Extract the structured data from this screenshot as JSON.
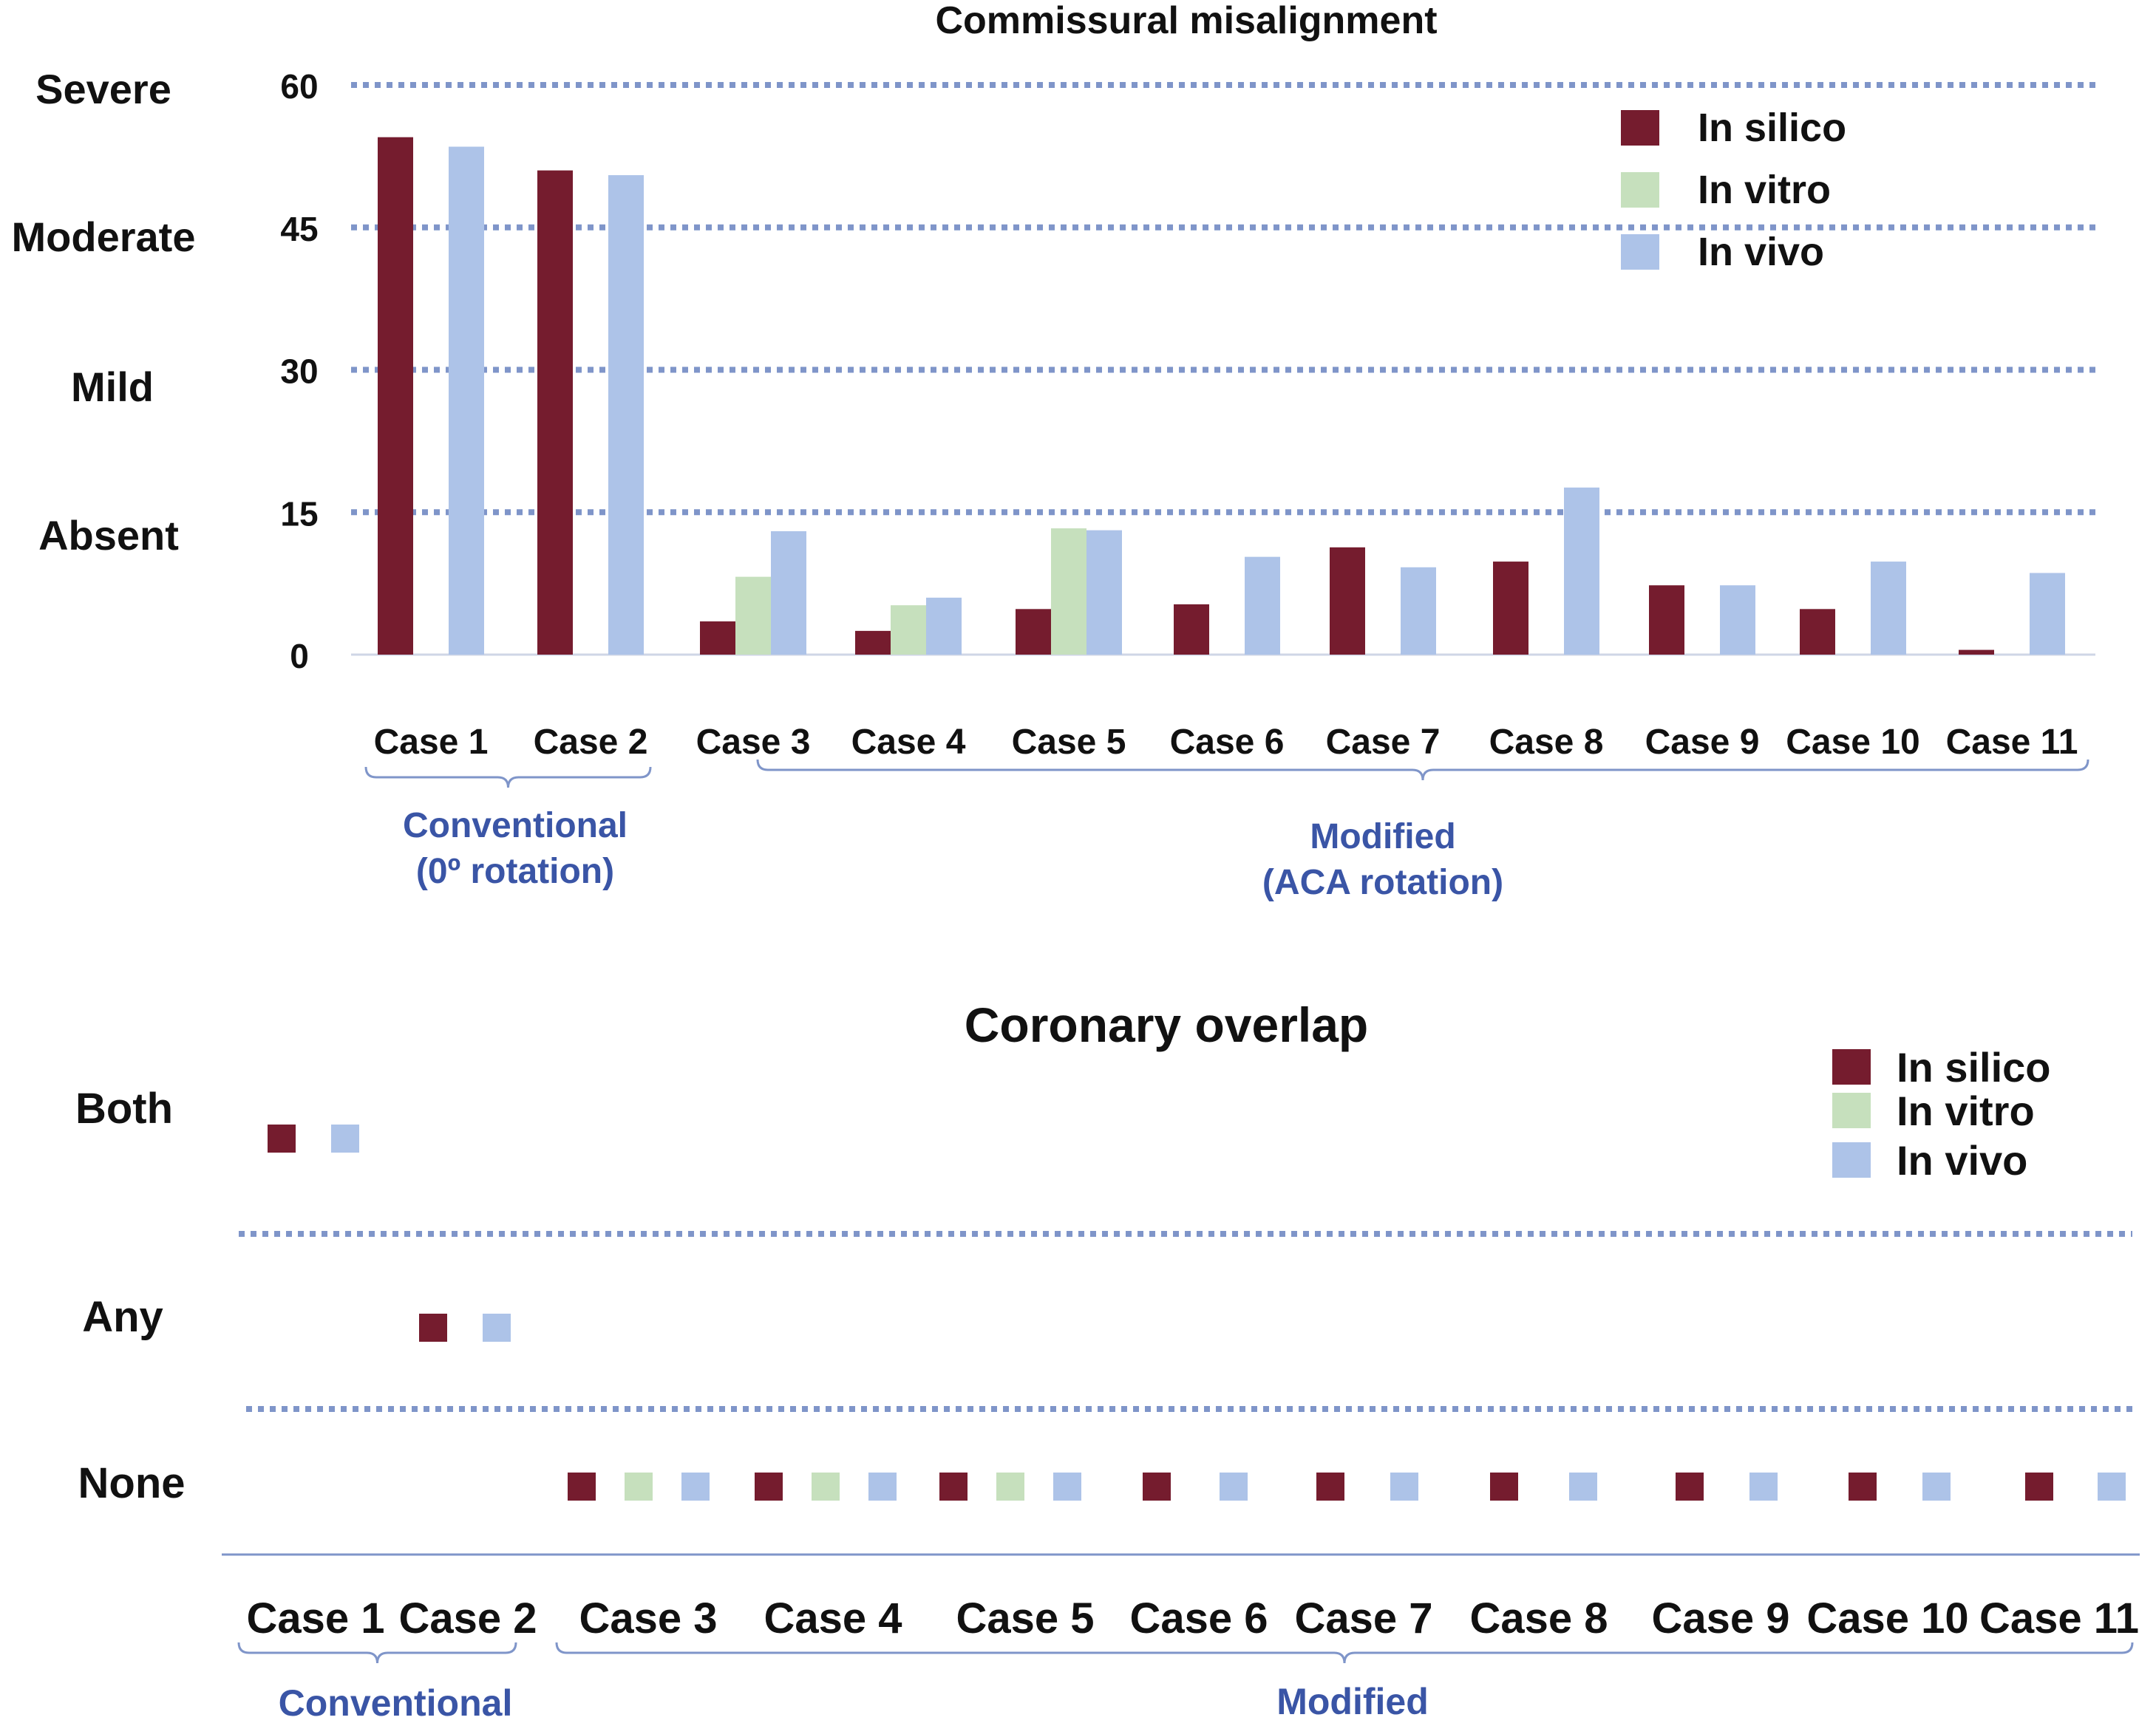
{
  "colors": {
    "in_silico": "#751c2e",
    "in_vitro": "#c6e0bd",
    "in_vivo": "#adc3e8",
    "grid": "#7f95c9",
    "group_text": "#3a55a6",
    "bracket": "#7f95c9"
  },
  "chart_data": [
    {
      "type": "bar",
      "title": "Commissural misalignment",
      "categories": [
        "Case 1",
        "Case 2",
        "Case 3",
        "Case 4",
        "Case 5",
        "Case 6",
        "Case 7",
        "Case 8",
        "Case 9",
        "Case 10",
        "Case 11"
      ],
      "series": [
        {
          "name": "In silico",
          "values": [
            54.5,
            51,
            3.5,
            2.5,
            4.8,
            5.3,
            11.3,
            9.8,
            7.3,
            4.8,
            0.5
          ]
        },
        {
          "name": "In vitro",
          "values": [
            null,
            null,
            8.2,
            5.2,
            13.3,
            null,
            null,
            null,
            null,
            null,
            null
          ]
        },
        {
          "name": "In vivo",
          "values": [
            53.5,
            50.5,
            13,
            6,
            13.1,
            10.3,
            9.2,
            17.6,
            7.3,
            9.8,
            8.6
          ]
        }
      ],
      "ylim": [
        0,
        60
      ],
      "yticks": [
        0,
        15,
        30,
        45,
        60
      ],
      "ytick_labels": [
        "0",
        "15",
        "30",
        "45",
        "60"
      ],
      "severity_labels": [
        "Severe",
        "Moderate",
        "Mild",
        "Absent"
      ],
      "legend": [
        "In silico",
        "In vitro",
        "In vivo"
      ],
      "legend_position": "top-right",
      "grid": "dotted horizontal",
      "groups": [
        {
          "label_lines": [
            "Conventional",
            "(0º rotation)"
          ],
          "cases": [
            "Case 1",
            "Case 2"
          ]
        },
        {
          "label_lines": [
            "Modified",
            "(ACA rotation)"
          ],
          "cases": [
            "Case 3",
            "Case 4",
            "Case 5",
            "Case 6",
            "Case 7",
            "Case 8",
            "Case 9",
            "Case 10",
            "Case 11"
          ]
        }
      ]
    },
    {
      "type": "scatter",
      "title": "Coronary overlap",
      "categories": [
        "Case 1",
        "Case 2",
        "Case 3",
        "Case 4",
        "Case 5",
        "Case 6",
        "Case 7",
        "Case 8",
        "Case 9",
        "Case 10",
        "Case 11"
      ],
      "levels": [
        "Both",
        "Any",
        "None"
      ],
      "series": [
        {
          "name": "In silico",
          "values": [
            "Both",
            "Any",
            "None",
            "None",
            "None",
            "None",
            "None",
            "None",
            "None",
            "None",
            "None"
          ]
        },
        {
          "name": "In vitro",
          "values": [
            null,
            null,
            "None",
            "None",
            "None",
            null,
            null,
            null,
            null,
            null,
            null
          ]
        },
        {
          "name": "In vivo",
          "values": [
            "Both",
            "Any",
            "None",
            "None",
            "None",
            "None",
            "None",
            "None",
            "None",
            "None",
            "None"
          ]
        }
      ],
      "legend": [
        "In silico",
        "In vitro",
        "In vivo"
      ],
      "legend_position": "top-right",
      "groups": [
        {
          "label_lines": [
            "Conventional"
          ],
          "cases": [
            "Case 1",
            "Case 2"
          ]
        },
        {
          "label_lines": [
            "Modified"
          ],
          "cases": [
            "Case 3",
            "Case 4",
            "Case 5",
            "Case 6",
            "Case 7",
            "Case 8",
            "Case 9",
            "Case 10",
            "Case 11"
          ]
        }
      ]
    }
  ]
}
